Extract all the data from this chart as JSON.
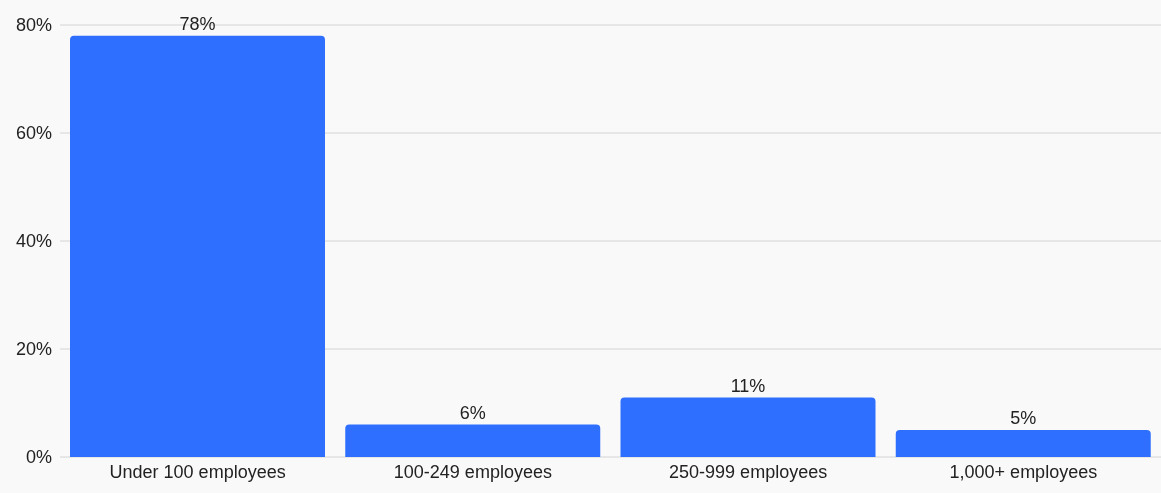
{
  "chart_data": {
    "type": "bar",
    "categories": [
      "Under 100 employees",
      "100-249 employees",
      "250-999 employees",
      "1,000+ employees"
    ],
    "values": [
      78,
      6,
      11,
      5
    ],
    "color": "#2f6fff",
    "value_labels": [
      "78%",
      "6%",
      "11%",
      "5%"
    ],
    "ylim": [
      0,
      80
    ],
    "yticks": [
      {
        "value": 0,
        "label": "0%"
      },
      {
        "value": 20,
        "label": "20%"
      },
      {
        "value": 40,
        "label": "40%"
      },
      {
        "value": 60,
        "label": "60%"
      },
      {
        "value": 80,
        "label": "80%"
      }
    ],
    "grid": "y"
  }
}
